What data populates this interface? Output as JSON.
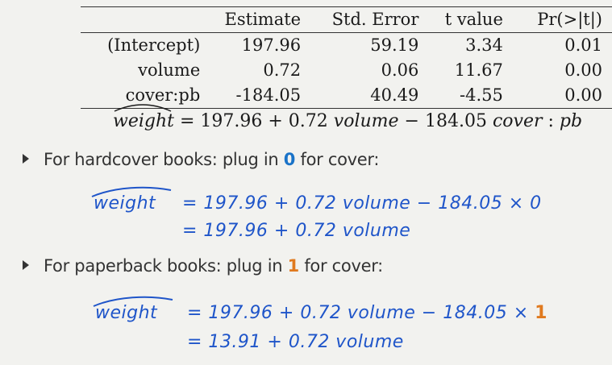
{
  "table": {
    "headers": [
      "",
      "Estimate",
      "Std. Error",
      "t value",
      "Pr(>|t|)"
    ],
    "rows": [
      [
        "(Intercept)",
        "197.96",
        "59.19",
        "3.34",
        "0.01"
      ],
      [
        "volume",
        "0.72",
        "0.06",
        "11.67",
        "0.00"
      ],
      [
        "cover:pb",
        "-184.05",
        "40.49",
        "-4.55",
        "0.00"
      ]
    ]
  },
  "model": {
    "lhs": "weight",
    "rhs_1": "= 197.96 + 0.72 ",
    "rhs_var1": "volume",
    "rhs_2": " − 184.05 ",
    "rhs_var2": "cover",
    "rhs_3": " : ",
    "rhs_var3": "pb"
  },
  "bullets": [
    {
      "prefix": "For hardcover books: plug in ",
      "value": "0",
      "suffix": " for cover:"
    },
    {
      "prefix": "For paperback books: plug in ",
      "value": "1",
      "suffix": " for cover:"
    }
  ],
  "handwriting": {
    "hardcover": {
      "lhs": "weight",
      "line1": "= 197.96 + 0.72 volume − 184.05 × 0",
      "line2": "= 197.96 + 0.72 volume"
    },
    "paperback": {
      "lhs": "weight",
      "line1": "= 197.96 + 0.72 volume − 184.05 ×",
      "line1_value": "1",
      "line2": "= 13.91 + 0.72 volume"
    }
  },
  "colors": {
    "handwriting": "#1f55c9",
    "hardcover_value": "#1a73c8",
    "paperback_value": "#e07a1f"
  }
}
